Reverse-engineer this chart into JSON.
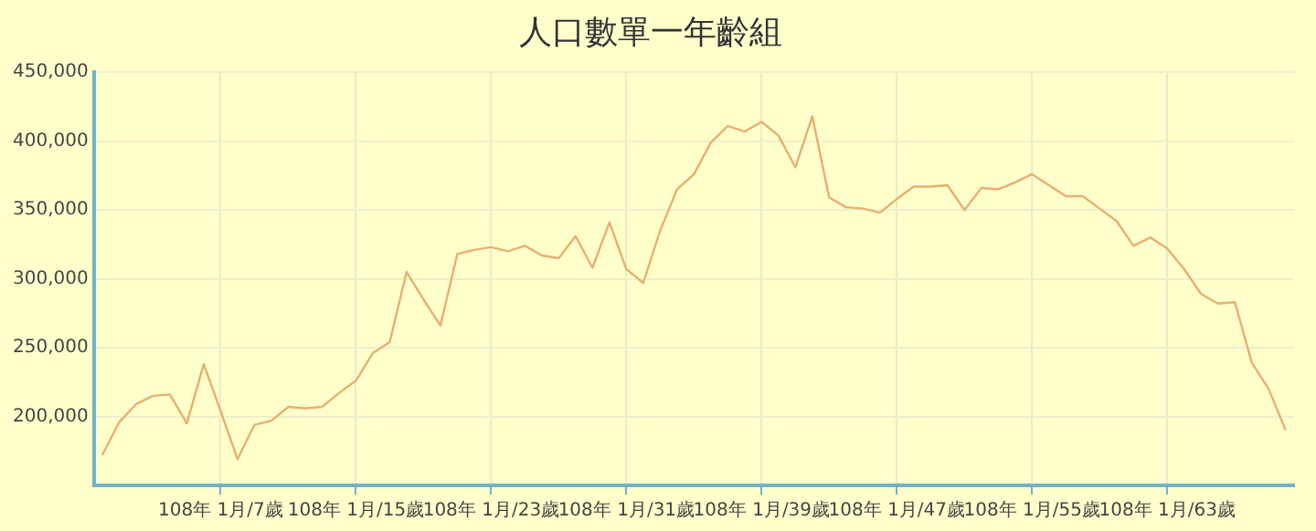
{
  "chart_data": {
    "type": "line",
    "title": "人口數單一年齡組",
    "categories": [
      null,
      null,
      null,
      null,
      null,
      null,
      null,
      "108年 1月/7歲",
      null,
      null,
      null,
      null,
      null,
      null,
      null,
      "108年 1月/15歲",
      null,
      null,
      null,
      null,
      null,
      null,
      null,
      "108年 1月/23歲",
      null,
      null,
      null,
      null,
      null,
      null,
      null,
      "108年 1月/31歲",
      null,
      null,
      null,
      null,
      null,
      null,
      null,
      "108年 1月/39歲",
      null,
      null,
      null,
      null,
      null,
      null,
      null,
      "108年 1月/47歲",
      null,
      null,
      null,
      null,
      null,
      null,
      null,
      "108年 1月/55歲",
      null,
      null,
      null,
      null,
      null,
      null,
      null,
      "108年 1月/63歲",
      null,
      null,
      null,
      null,
      null,
      null,
      null
    ],
    "series": [
      {
        "color": "#e8b070",
        "values": [
          172000,
          196000,
          209000,
          215000,
          216000,
          195000,
          238000,
          204000,
          169000,
          194000,
          197000,
          207000,
          206000,
          207000,
          217000,
          226000,
          246000,
          254000,
          305000,
          285000,
          266000,
          318000,
          321000,
          323000,
          320000,
          324000,
          317000,
          315000,
          331000,
          308000,
          341000,
          307000,
          297000,
          335000,
          365000,
          376000,
          399000,
          411000,
          407000,
          414000,
          404000,
          381000,
          418000,
          359000,
          352000,
          351000,
          348000,
          358000,
          367000,
          367000,
          368000,
          350000,
          366000,
          365000,
          370000,
          376000,
          368000,
          360000,
          360000,
          351000,
          342000,
          324000,
          330000,
          322000,
          307000,
          289000,
          282000,
          283000,
          239000,
          220000,
          190000
        ]
      }
    ],
    "ylim": [
      150000,
      450000
    ],
    "yticks": [
      {
        "value": 150000,
        "label": null
      },
      {
        "value": 200000,
        "label": "200,000"
      },
      {
        "value": 250000,
        "label": "250,000"
      },
      {
        "value": 300000,
        "label": "300,000"
      },
      {
        "value": 350000,
        "label": "350,000"
      },
      {
        "value": 400000,
        "label": "400,000"
      },
      {
        "value": 450000,
        "label": "450,000"
      }
    ],
    "grid": true,
    "legend": false,
    "marker": "none",
    "line_style": "solid"
  }
}
